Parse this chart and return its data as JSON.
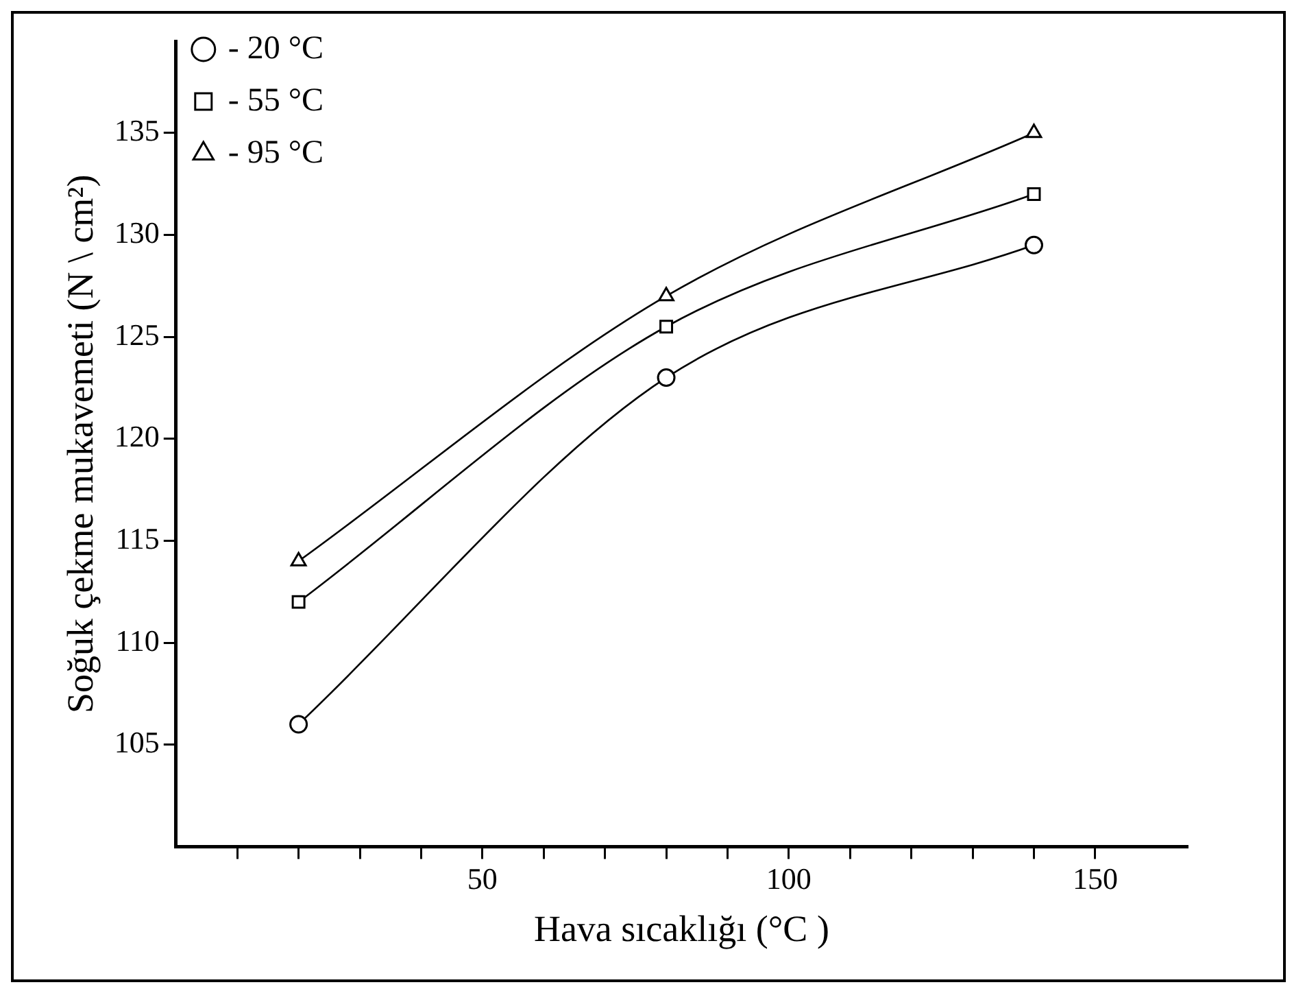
{
  "chart_data": {
    "type": "line",
    "xlabel": "Hava sıcaklığı (°C )",
    "ylabel": "Soğuk çekme mukavemeti (N \\ cm²)",
    "x": [
      20,
      80,
      140
    ],
    "series": [
      {
        "name": "- 20 °C",
        "color": "#000000",
        "marker": "circle",
        "values": [
          106,
          123,
          129.5
        ]
      },
      {
        "name": "- 55 °C",
        "color": "#000000",
        "marker": "square",
        "values": [
          112,
          125.5,
          132
        ]
      },
      {
        "name": "- 95 °C",
        "color": "#000000",
        "marker": "triangle",
        "values": [
          114,
          127,
          135
        ]
      }
    ],
    "xlim": [
      0,
      165
    ],
    "ylim": [
      100,
      139.5
    ],
    "xticks": [
      {
        "value": 10,
        "label": null
      },
      {
        "value": 20,
        "label": null
      },
      {
        "value": 30,
        "label": null
      },
      {
        "value": 40,
        "label": null
      },
      50,
      {
        "value": 60,
        "label": null
      },
      {
        "value": 70,
        "label": null
      },
      {
        "value": 80,
        "label": null
      },
      {
        "value": 90,
        "label": null
      },
      100,
      {
        "value": 110,
        "label": null
      },
      {
        "value": 120,
        "label": null
      },
      {
        "value": 130,
        "label": null
      },
      {
        "value": 140,
        "label": null
      },
      150
    ],
    "yticks": [
      105,
      110,
      115,
      120,
      125,
      130,
      135
    ],
    "grid": false,
    "legend": "top left"
  }
}
